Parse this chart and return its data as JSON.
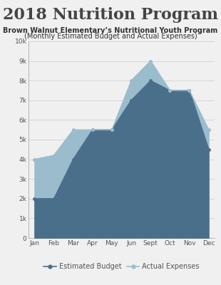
{
  "title": "2018 Nutrition Program",
  "subtitle1": "Brown Walnut Elementary’s Nutritional Youth Program",
  "subtitle2": "(Monthly Estimated Budget and Actual Expenses)",
  "months": [
    "Jan",
    "Feb",
    "Mar",
    "Apr",
    "May",
    "Jun",
    "Sept",
    "Oct",
    "Nov",
    "Dec"
  ],
  "estimated_budget": [
    2000,
    2000,
    4000,
    5500,
    5500,
    7000,
    8000,
    7500,
    7500,
    4500
  ],
  "actual_expenses": [
    4000,
    4200,
    5500,
    5500,
    5500,
    8000,
    9000,
    7500,
    7500,
    5500
  ],
  "budget_color": "#4a6f8a",
  "actual_color": "#9bbccc",
  "background_color": "#f0f0f0",
  "ylim": [
    0,
    10000
  ],
  "yticks": [
    0,
    1000,
    2000,
    3000,
    4000,
    5000,
    6000,
    7000,
    8000,
    9000,
    10000
  ],
  "ytick_labels": [
    "0",
    "1k",
    "2k",
    "3k",
    "4k",
    "5k",
    "6k",
    "7k",
    "8k",
    "9k",
    "10k"
  ],
  "legend_budget": "Estimated Budget",
  "legend_actual": "Actual Expenses",
  "title_fontsize": 16,
  "subtitle_fontsize": 7.0,
  "axis_fontsize": 6.5,
  "legend_fontsize": 7.0
}
